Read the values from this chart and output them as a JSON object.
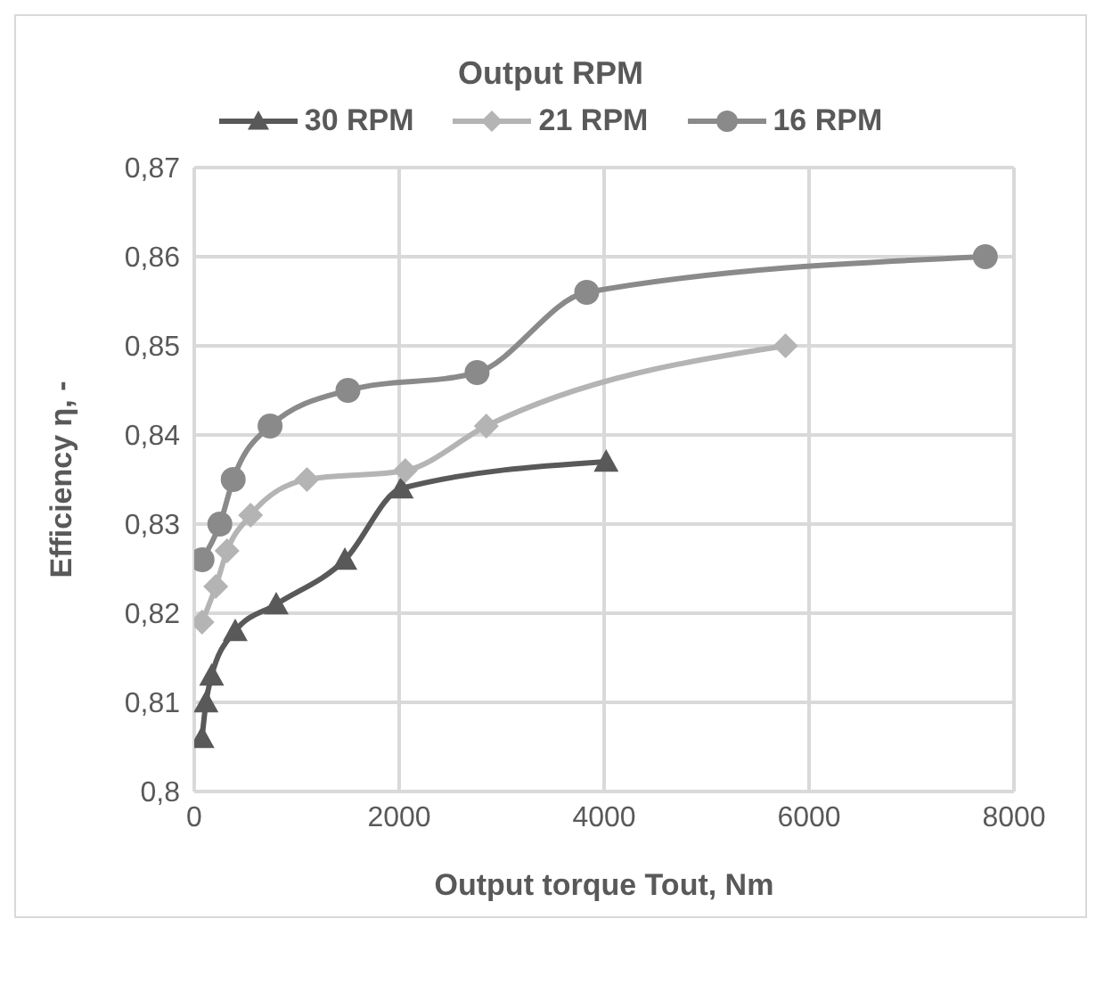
{
  "chart_data": {
    "type": "line",
    "title": "Output RPM",
    "xlabel": "Output torque Tout, Nm",
    "ylabel": "Efficiency η, -",
    "xlim": [
      0,
      8000
    ],
    "xticks": [
      0,
      2000,
      4000,
      6000,
      8000
    ],
    "ylim": [
      0.8,
      0.87
    ],
    "yticks": [
      {
        "value": 0.8,
        "label": "0,8"
      },
      {
        "value": 0.81,
        "label": "0,81"
      },
      {
        "value": 0.82,
        "label": "0,82"
      },
      {
        "value": 0.83,
        "label": "0,83"
      },
      {
        "value": 0.84,
        "label": "0,84"
      },
      {
        "value": 0.85,
        "label": "0,85"
      },
      {
        "value": 0.86,
        "label": "0,86"
      },
      {
        "value": 0.87,
        "label": "0,87"
      }
    ],
    "grid": true,
    "legend": "top",
    "line_style": "solid",
    "series": [
      {
        "name": "30 RPM",
        "color": "#595959",
        "marker": "triangle",
        "x": [
          76,
          115,
          170,
          400,
          800,
          1470,
          2020,
          4020
        ],
        "values": [
          0.806,
          0.81,
          0.813,
          0.818,
          0.821,
          0.826,
          0.834,
          0.837
        ]
      },
      {
        "name": "21 RPM",
        "color": "#b4b4b4",
        "marker": "diamond",
        "x": [
          76,
          210,
          320,
          550,
          1100,
          2060,
          2850,
          5770
        ],
        "values": [
          0.819,
          0.823,
          0.827,
          0.831,
          0.835,
          0.836,
          0.841,
          0.85
        ]
      },
      {
        "name": "16 RPM",
        "color": "#8a8a8a",
        "marker": "circle",
        "x": [
          76,
          250,
          380,
          740,
          1500,
          2760,
          3830,
          7720
        ],
        "values": [
          0.826,
          0.83,
          0.835,
          0.841,
          0.845,
          0.847,
          0.856,
          0.86
        ]
      }
    ]
  }
}
